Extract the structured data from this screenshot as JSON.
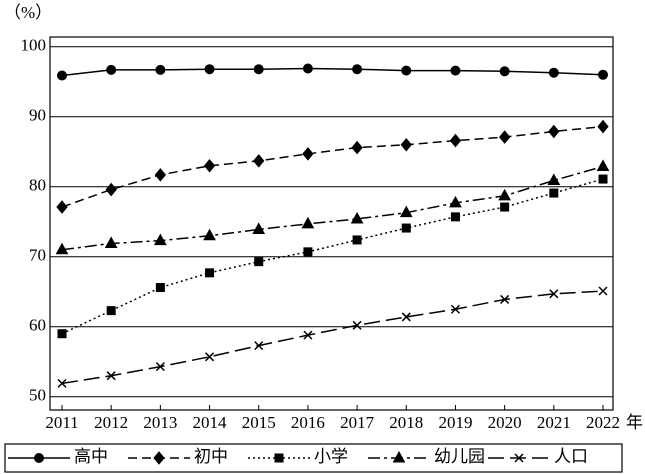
{
  "chart_data": {
    "type": "line",
    "y_label": "（%）",
    "x_label": "年",
    "categories": [
      "2011",
      "2012",
      "2013",
      "2014",
      "2015",
      "2016",
      "2017",
      "2018",
      "2019",
      "2020",
      "2021",
      "2022"
    ],
    "ylim": [
      48.1,
      101.4
    ],
    "yticks": [
      50,
      60,
      70,
      80,
      90,
      100
    ],
    "grid": true,
    "series": [
      {
        "name": "高中",
        "color": "#000000",
        "marker": "circle",
        "dash": "solid",
        "values": [
          95.9,
          96.7,
          96.7,
          96.8,
          96.8,
          96.9,
          96.8,
          96.6,
          96.6,
          96.5,
          96.3,
          96.0
        ]
      },
      {
        "name": "初中",
        "color": "#000000",
        "marker": "diamond",
        "dash": "dashed",
        "values": [
          77.1,
          79.6,
          81.7,
          83.0,
          83.7,
          84.7,
          85.6,
          86.0,
          86.6,
          87.1,
          87.9,
          88.6
        ]
      },
      {
        "name": "小学",
        "color": "#000000",
        "marker": "square",
        "dash": "dotted",
        "values": [
          59.0,
          62.3,
          65.6,
          67.7,
          69.3,
          70.7,
          72.4,
          74.1,
          75.7,
          77.1,
          79.1,
          81.1
        ]
      },
      {
        "name": "幼儿园",
        "color": "#000000",
        "marker": "triangle",
        "dash": "dashdot",
        "values": [
          71.0,
          71.9,
          72.3,
          73.0,
          73.9,
          74.7,
          75.4,
          76.3,
          77.7,
          78.7,
          80.9,
          82.9
        ]
      },
      {
        "name": "人口",
        "color": "#000000",
        "marker": "cross",
        "dash": "longdash",
        "values": [
          51.9,
          53.0,
          54.3,
          55.7,
          57.3,
          58.8,
          60.2,
          61.4,
          62.5,
          63.9,
          64.7,
          65.1
        ]
      }
    ]
  }
}
